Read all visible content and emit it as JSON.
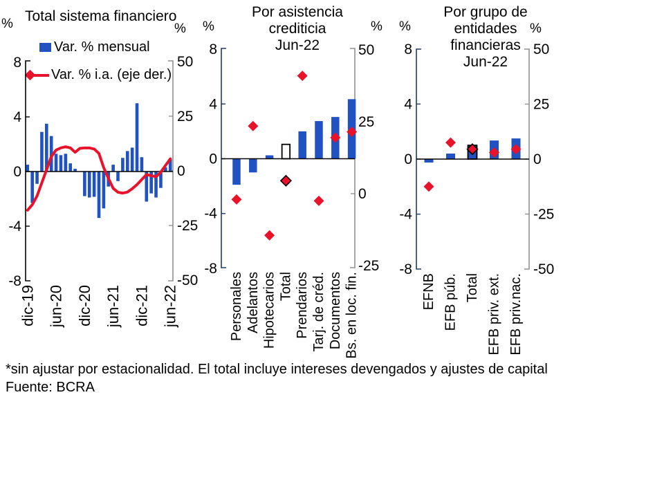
{
  "footnote": "*sin ajustar por estacionalidad. El total incluye intereses devengados y ajustes de capital",
  "source": "Fuente: BCRA",
  "colors": {
    "bar_blue": "#2052C2",
    "marker_red": "#E8132B",
    "axis_black": "#000000",
    "axis_navy": "#1F3864",
    "axis_gray": "#909090",
    "total_outline": "#000000",
    "total_fill_panel2": "#FFFFFF"
  },
  "chart_data": [
    {
      "type": "bar+line",
      "title": "Total sistema financiero",
      "unit_left": "%",
      "unit_right": "%",
      "legend": [
        "Var. % mensual",
        "Var. % i.a. (eje der.)"
      ],
      "ylim_left": [
        -8,
        8
      ],
      "ylim_right": [
        -50,
        50
      ],
      "yticks_left": [
        8,
        4,
        0,
        -4,
        -8
      ],
      "yticks_right": [
        50,
        25,
        0,
        -25,
        -50
      ],
      "grid": false,
      "x": [
        "dic-19",
        "ene-20",
        "feb-20",
        "mar-20",
        "abr-20",
        "may-20",
        "jun-20",
        "jul-20",
        "ago-20",
        "sep-20",
        "oct-20",
        "nov-20",
        "dic-20",
        "ene-21",
        "feb-21",
        "mar-21",
        "abr-21",
        "may-21",
        "jun-21",
        "jul-21",
        "ago-21",
        "sep-21",
        "oct-21",
        "nov-21",
        "dic-21",
        "ene-22",
        "feb-22",
        "mar-22",
        "abr-22",
        "may-22",
        "jun-22"
      ],
      "xticks": [
        "dic-19",
        "jun-20",
        "dic-20",
        "jun-21",
        "dic-21",
        "jun-22"
      ],
      "series": [
        {
          "name": "Var. % mensual",
          "type": "bar",
          "axis": "left",
          "values": [
            0.5,
            -2.3,
            -0.9,
            2.9,
            3.5,
            2.6,
            1.3,
            1.2,
            1.3,
            0.6,
            0.2,
            0,
            -1.8,
            -1.9,
            -1.85,
            -3.4,
            -2.7,
            -1.1,
            0.5,
            -0.7,
            1,
            1.5,
            1.75,
            5,
            1.05,
            -2.2,
            -1.6,
            -1.9,
            -1.2,
            0.3,
            0.9
          ]
        },
        {
          "name": "Var. % i.a. (eje der.)",
          "type": "line",
          "axis": "right",
          "values": [
            -18,
            -15.5,
            -11.5,
            -5.5,
            0.5,
            6.5,
            9.5,
            10.5,
            11,
            10.5,
            8.5,
            10.3,
            10.5,
            10.5,
            10,
            8,
            1.5,
            -3.5,
            -8,
            -9.8,
            -10.2,
            -9.7,
            -8.2,
            -6.3,
            -4,
            -1.7,
            -2.2,
            -2.7,
            -0.6,
            2.5,
            5.5
          ]
        }
      ]
    },
    {
      "type": "bar+scatter",
      "title": "Por asistencia\ncrediticia\nJun-22",
      "unit_left": "%",
      "unit_right": "%",
      "ylim_left": [
        -8,
        8
      ],
      "ylim_right": [
        -25,
        50
      ],
      "yticks_left": [
        8,
        4,
        0,
        -4,
        -8
      ],
      "yticks_right": [
        50,
        25,
        0,
        -25
      ],
      "grid": false,
      "categories": [
        "Personales",
        "Adelantos",
        "Hipotecarios",
        "Total",
        "Prendarios",
        "Tarj. de créd.",
        "Documentos",
        "Bs. en loc. fin."
      ],
      "highlight_category": "Total",
      "series": [
        {
          "name": "Var. % mensual",
          "type": "bar",
          "axis": "left",
          "values": [
            -1.9,
            -1.0,
            0.25,
            1.05,
            2.0,
            2.75,
            3.05,
            4.35
          ]
        },
        {
          "name": "Var. % i.a. (eje der.)",
          "type": "diamond",
          "axis": "right",
          "values": [
            -2,
            23.5,
            -14.5,
            4.5,
            41,
            -2.5,
            19.5,
            21.5
          ]
        }
      ]
    },
    {
      "type": "bar+scatter",
      "title": "Por grupo de\nentidades\nfinancieras\nJun-22",
      "unit_left": "%",
      "unit_right": "%",
      "ylim_left": [
        -8,
        8
      ],
      "ylim_right": [
        -50,
        50
      ],
      "yticks_left": [
        8,
        4,
        0,
        -4,
        -8
      ],
      "yticks_right": [
        50,
        25,
        0,
        -25,
        -50
      ],
      "grid": false,
      "categories": [
        "EFNB",
        "EFB púb.",
        "Total",
        "EFB priv. ext.",
        "EFB priv.nac."
      ],
      "highlight_category": "Total",
      "series": [
        {
          "name": "Var. % mensual",
          "type": "bar",
          "axis": "left",
          "values": [
            -0.25,
            0.4,
            1.0,
            1.35,
            1.5
          ]
        },
        {
          "name": "Var. % i.a. (eje der.)",
          "type": "diamond",
          "axis": "right",
          "values": [
            -12.5,
            7.5,
            4.5,
            3,
            4.5
          ]
        }
      ]
    }
  ]
}
